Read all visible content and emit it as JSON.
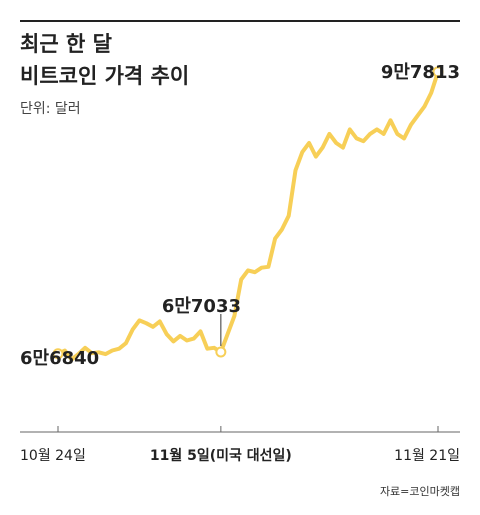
{
  "title_lines": [
    "최근 한 달",
    "비트코인 가격 추이"
  ],
  "unit": "단위: 달러",
  "source": "자료=코인마켓캡",
  "colors": {
    "line": "#f7cf57",
    "axis": "#666666",
    "text": "#222222",
    "marker_fill": "#ffffff"
  },
  "chart_data": {
    "type": "line",
    "title": "최근 한 달 비트코인 가격 추이",
    "xlabel": "",
    "ylabel": "",
    "unit": "달러",
    "ylim": [
      60000,
      100000
    ],
    "x_ticks": [
      {
        "x": 0,
        "label": "10월 24일",
        "bold": false
      },
      {
        "x": 12,
        "label": "11월 5일(미국 대선일)",
        "bold": true
      },
      {
        "x": 28,
        "label": "11월 21일",
        "bold": false
      }
    ],
    "annotations": [
      {
        "x": 0,
        "y": 66840,
        "label": "6만6840"
      },
      {
        "x": 12,
        "y": 67033,
        "label": "6만7033"
      },
      {
        "x": 28,
        "y": 97813,
        "label": "9만7813"
      }
    ],
    "x": [
      0,
      0.5,
      1,
      1.5,
      2,
      2.5,
      3,
      3.5,
      4,
      4.5,
      5,
      5.5,
      6,
      6.5,
      7,
      7.5,
      8,
      8.5,
      9,
      9.5,
      10,
      10.5,
      11,
      11.5,
      12,
      12.5,
      13,
      13.5,
      14,
      14.5,
      15,
      15.5,
      16,
      16.5,
      17,
      17.5,
      18,
      18.5,
      19,
      19.5,
      20,
      20.5,
      21,
      21.5,
      22,
      22.5,
      23,
      23.5,
      24,
      24.5,
      25,
      25.5,
      26,
      26.5,
      27,
      27.5,
      28
    ],
    "series": [
      {
        "values": [
          66840,
          67200,
          66200,
          66800,
          67500,
          66900,
          67000,
          66800,
          67200,
          67400,
          68000,
          69500,
          70500,
          70200,
          69800,
          70400,
          69000,
          68200,
          68800,
          68300,
          68500,
          69300,
          67400,
          67500,
          67033,
          69000,
          71000,
          75000,
          76000,
          75800,
          76300,
          76400,
          79500,
          80500,
          82000,
          87000,
          89000,
          90000,
          88500,
          89500,
          91000,
          90000,
          89500,
          91500,
          90500,
          90200,
          91000,
          91500,
          91000,
          92500,
          91000,
          90500,
          92000,
          93000,
          94000,
          95500,
          97813
        ]
      }
    ]
  }
}
